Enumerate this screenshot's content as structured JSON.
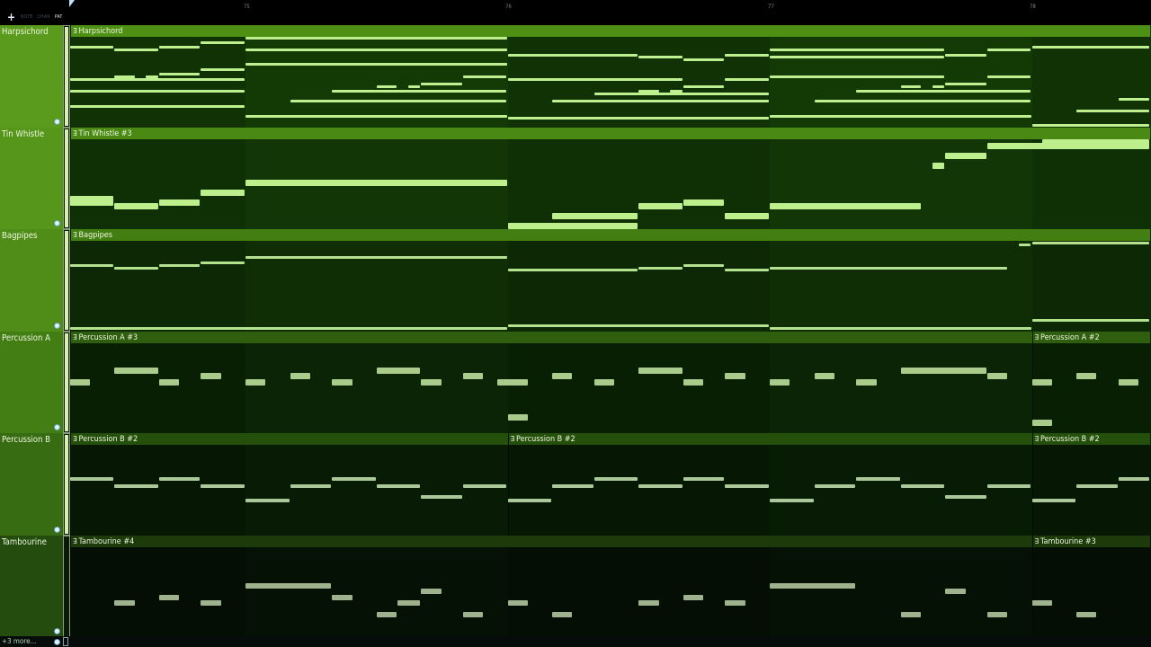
{
  "toolbar": {
    "add": "+",
    "modes": [
      "NOTE",
      "CHAN",
      "PAT"
    ],
    "active_mode": "PAT"
  },
  "ruler": {
    "bars": [
      "75",
      "76",
      "77",
      "78"
    ]
  },
  "view": {
    "start_bar": 74.33,
    "end_bar": 78.45
  },
  "footer": {
    "more_label": "+3 more..."
  },
  "tracks": [
    {
      "name": "Harpsichord",
      "label_color": "#5a9a1c",
      "header_color": "#4e9014",
      "body_color": "#133a05",
      "note_color": "#bff08f",
      "note_height": 3,
      "clips": [
        {
          "label": "Harpsichord",
          "start": 74.33,
          "end": 78.45
        }
      ],
      "notes": [
        [
          74.33,
          74.5,
          80
        ],
        [
          74.5,
          74.67,
          79
        ],
        [
          74.67,
          74.83,
          80
        ],
        [
          74.83,
          75,
          82
        ],
        [
          74.5,
          74.58,
          68
        ],
        [
          74.62,
          74.67,
          68
        ],
        [
          74.67,
          74.83,
          69
        ],
        [
          74.83,
          75,
          71
        ],
        [
          74.33,
          75,
          67
        ],
        [
          74.33,
          75,
          62
        ],
        [
          74.33,
          75,
          56
        ],
        [
          75,
          76,
          84
        ],
        [
          75,
          76,
          79
        ],
        [
          75,
          76,
          73
        ],
        [
          75.83,
          76,
          68
        ],
        [
          75.67,
          75.83,
          65
        ],
        [
          75.5,
          75.58,
          64
        ],
        [
          75.62,
          75.67,
          64
        ],
        [
          75.33,
          76,
          62
        ],
        [
          75.17,
          76,
          58
        ],
        [
          75,
          76,
          52
        ],
        [
          76,
          76.5,
          77
        ],
        [
          76.5,
          76.67,
          76
        ],
        [
          76.67,
          76.83,
          75
        ],
        [
          76.83,
          77,
          77
        ],
        [
          76,
          76.67,
          67
        ],
        [
          76.83,
          77,
          67
        ],
        [
          76.67,
          76.83,
          64
        ],
        [
          76.33,
          77,
          61
        ],
        [
          76.5,
          76.58,
          62
        ],
        [
          76.62,
          76.67,
          62
        ],
        [
          76.17,
          77,
          58
        ],
        [
          76,
          77,
          51
        ],
        [
          77,
          77.67,
          79
        ],
        [
          77.67,
          77.83,
          77
        ],
        [
          77.83,
          78,
          79
        ],
        [
          77,
          77.67,
          76
        ],
        [
          77,
          77.67,
          68
        ],
        [
          77.83,
          78,
          68
        ],
        [
          77.67,
          77.83,
          65
        ],
        [
          77.5,
          77.58,
          64
        ],
        [
          77.62,
          77.67,
          64
        ],
        [
          77.33,
          78,
          62
        ],
        [
          77.17,
          78,
          58
        ],
        [
          77,
          78,
          52
        ],
        [
          78,
          78.45,
          80
        ],
        [
          78.33,
          78.45,
          59
        ],
        [
          78.17,
          78.45,
          54
        ],
        [
          78,
          78.45,
          48
        ]
      ]
    },
    {
      "name": "Tin Whistle",
      "label_color": "#56961a",
      "header_color": "#4a8a14",
      "body_color": "#123605",
      "note_color": "#bdf08c",
      "note_height": 7,
      "clips": [
        {
          "label": "Tin Whistle #3",
          "start": 74.33,
          "end": 78.45
        }
      ],
      "notes": [
        [
          74.33,
          74.5,
          69
        ],
        [
          74.33,
          74.5,
          68
        ],
        [
          74.5,
          74.67,
          67
        ],
        [
          74.67,
          74.83,
          68
        ],
        [
          74.83,
          75,
          71
        ],
        [
          75,
          76,
          74
        ],
        [
          76,
          76.5,
          61
        ],
        [
          76.17,
          76.5,
          64
        ],
        [
          76.5,
          76.67,
          67
        ],
        [
          76.67,
          76.83,
          68
        ],
        [
          76.83,
          77,
          64
        ],
        [
          77,
          77.58,
          67
        ],
        [
          77.62,
          77.67,
          79
        ],
        [
          77.67,
          77.83,
          82
        ],
        [
          77.83,
          78.45,
          85
        ],
        [
          78.04,
          78.45,
          86
        ]
      ]
    },
    {
      "name": "Bagpipes",
      "label_color": "#4f8c18",
      "header_color": "#437e12",
      "body_color": "#0f2e05",
      "note_color": "#b4e28e",
      "note_height": 3,
      "clips": [
        {
          "label": "Bagpipes",
          "start": 74.33,
          "end": 78.45
        }
      ],
      "notes": [
        [
          74.33,
          74.5,
          86
        ],
        [
          74.5,
          74.67,
          85
        ],
        [
          74.67,
          74.83,
          86
        ],
        [
          74.83,
          75,
          87
        ],
        [
          75,
          76,
          89
        ],
        [
          76,
          76.5,
          84
        ],
        [
          76.5,
          76.67,
          85
        ],
        [
          76.67,
          76.83,
          86
        ],
        [
          76.83,
          77,
          84
        ],
        [
          77,
          77.91,
          85
        ],
        [
          77.95,
          78,
          94
        ],
        [
          78,
          78.45,
          95
        ],
        [
          74.33,
          76,
          61
        ],
        [
          76,
          77,
          62
        ],
        [
          77,
          78,
          61
        ],
        [
          78,
          78.45,
          64
        ]
      ]
    },
    {
      "name": "Percussion A",
      "label_color": "#437e14",
      "header_color": "#2f5e0e",
      "body_color": "#0b2405",
      "note_color": "#a9cc8c",
      "note_height": 7,
      "clips": [
        {
          "label": "Percussion A #3",
          "start": 74.33,
          "end": 78
        },
        {
          "label": "Percussion A #2",
          "start": 78,
          "end": 78.45
        }
      ],
      "notes": [
        [
          74.33,
          74.41,
          60
        ],
        [
          74.5,
          74.67,
          62
        ],
        [
          74.67,
          74.75,
          60
        ],
        [
          74.83,
          74.91,
          61
        ],
        [
          75,
          75.08,
          60
        ],
        [
          75.17,
          75.25,
          61
        ],
        [
          75.33,
          75.41,
          60
        ],
        [
          75.5,
          75.67,
          62
        ],
        [
          75.67,
          75.75,
          60
        ],
        [
          75.83,
          75.91,
          61
        ],
        [
          75.96,
          76.08,
          60
        ],
        [
          76,
          76.08,
          54
        ],
        [
          76.17,
          76.25,
          61
        ],
        [
          76.33,
          76.41,
          60
        ],
        [
          76.5,
          76.67,
          62
        ],
        [
          76.67,
          76.75,
          60
        ],
        [
          76.83,
          76.91,
          61
        ],
        [
          77,
          77.08,
          60
        ],
        [
          77.17,
          77.25,
          61
        ],
        [
          77.33,
          77.41,
          60
        ],
        [
          77.5,
          77.83,
          62
        ],
        [
          77.83,
          77.91,
          61
        ],
        [
          78,
          78.08,
          60
        ],
        [
          78,
          78.08,
          53
        ],
        [
          78.17,
          78.25,
          61
        ],
        [
          78.33,
          78.41,
          60
        ]
      ]
    },
    {
      "name": "Percussion B",
      "label_color": "#386c12",
      "header_color": "#25500c",
      "body_color": "#081c05",
      "note_color": "#aac89a",
      "note_height": 4,
      "clips": [
        {
          "label": "Percussion B #2",
          "start": 74.33,
          "end": 76
        },
        {
          "label": "Percussion B #2",
          "start": 76,
          "end": 78
        },
        {
          "label": "Percussion B #2",
          "start": 78,
          "end": 78.45
        }
      ],
      "notes": [
        [
          74.33,
          74.5,
          62
        ],
        [
          74.5,
          74.67,
          60
        ],
        [
          74.67,
          74.83,
          62
        ],
        [
          74.83,
          75,
          60
        ],
        [
          75,
          75.17,
          56
        ],
        [
          75.17,
          75.33,
          60
        ],
        [
          75.33,
          75.5,
          62
        ],
        [
          75.5,
          75.67,
          60
        ],
        [
          75.67,
          75.83,
          57
        ],
        [
          75.83,
          76,
          60
        ],
        [
          76,
          76.17,
          56
        ],
        [
          76.17,
          76.33,
          60
        ],
        [
          76.33,
          76.5,
          62
        ],
        [
          76.5,
          76.67,
          60
        ],
        [
          76.67,
          76.83,
          62
        ],
        [
          76.83,
          77,
          60
        ],
        [
          77,
          77.17,
          56
        ],
        [
          77.17,
          77.33,
          60
        ],
        [
          77.33,
          77.5,
          62
        ],
        [
          77.5,
          77.67,
          60
        ],
        [
          77.67,
          77.83,
          57
        ],
        [
          77.83,
          78,
          60
        ],
        [
          78,
          78.17,
          56
        ],
        [
          78.17,
          78.33,
          60
        ],
        [
          78.33,
          78.45,
          62
        ]
      ]
    },
    {
      "name": "Tambourine",
      "label_color": "#244c0e",
      "header_color": "#1c3a0a",
      "body_color": "#051105",
      "note_color": "#9fb28e",
      "note_height": 6,
      "clips": [
        {
          "label": "Tambourine #4",
          "start": 74.33,
          "end": 78
        },
        {
          "label": "Tambourine #3",
          "start": 78,
          "end": 78.45
        }
      ],
      "notes": [
        [
          74.5,
          74.58,
          60
        ],
        [
          74.67,
          74.75,
          61
        ],
        [
          74.83,
          74.91,
          60
        ],
        [
          75,
          75.33,
          63
        ],
        [
          75.33,
          75.41,
          61
        ],
        [
          75.5,
          75.58,
          58
        ],
        [
          75.58,
          75.67,
          60
        ],
        [
          75.67,
          75.75,
          62
        ],
        [
          75.83,
          75.91,
          58
        ],
        [
          76,
          76.08,
          60
        ],
        [
          76.17,
          76.25,
          58
        ],
        [
          76.5,
          76.58,
          60
        ],
        [
          76.67,
          76.75,
          61
        ],
        [
          76.83,
          76.91,
          60
        ],
        [
          77,
          77.33,
          63
        ],
        [
          77.5,
          77.58,
          58
        ],
        [
          77.67,
          77.75,
          62
        ],
        [
          77.83,
          77.91,
          58
        ],
        [
          78,
          78.08,
          60
        ],
        [
          78.17,
          78.25,
          58
        ]
      ]
    }
  ]
}
